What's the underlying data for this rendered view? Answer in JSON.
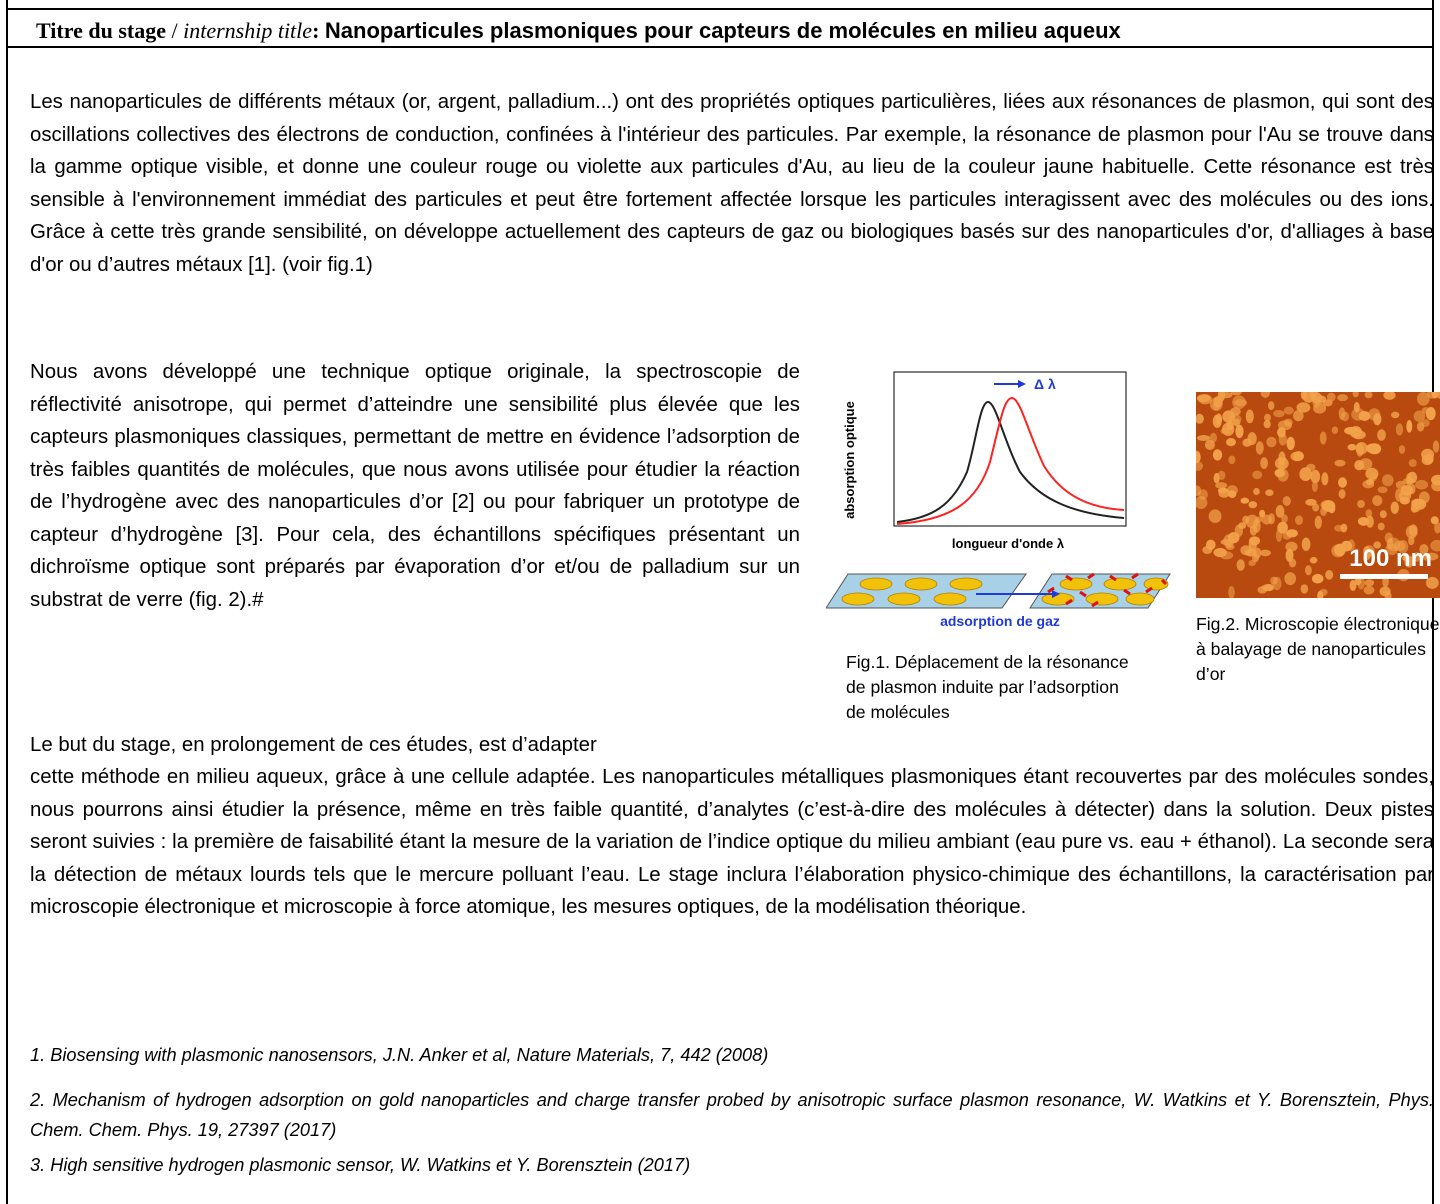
{
  "title": {
    "label_fr": "Titre du stage",
    "separator": " / ",
    "label_en": "internship title",
    "colon": ": ",
    "text": "Nanoparticules plasmoniques pour capteurs de molécules en milieu aqueux"
  },
  "paragraphs": {
    "p1": "Les nanoparticules de différents métaux (or, argent, palladium...) ont des propriétés optiques particulières, liées aux résonances de plasmon, qui sont des oscillations collectives des électrons de conduction, confinées à l'intérieur des particules. Par exemple, la résonance de plasmon pour l'Au se trouve dans la gamme optique visible, et donne une couleur rouge ou violette aux particules d'Au, au lieu de la couleur jaune habituelle. Cette résonance est très sensible à l'environnement immédiat des particules et peut être fortement affectée lorsque les particules interagissent avec des molécules ou des ions. Grâce à cette très grande sensibilité, on développe actuellement des capteurs de gaz ou biologiques basés sur des nanoparticules d'or,  d'alliages à base d'or ou d’autres métaux [1]. (voir fig.1)",
    "p2": "Nous avons développé une technique optique originale, la spectroscopie de réflectivité anisotrope, qui permet d’atteindre une sensibilité plus élevée que les capteurs plasmoniques classiques, permettant de mettre en évidence l’adsorption de très faibles quantités de molécules, que nous avons utilisée pour étudier la réaction de l’hydrogène avec des nanoparticules d’or [2] ou pour fabriquer un prototype de capteur d’hydrogène [3]. Pour cela, des échantillons spécifiques présentant un dichroïsme optique sont préparés par évaporation d’or et/ou de palladium sur un substrat de verre (fig. 2).#",
    "p3_first_line": "Le but du stage, en prolongement de ces études, est d’adapter",
    "p3_rest": "cette méthode en milieu aqueux, grâce à une cellule adaptée. Les nanoparticules métalliques plasmoniques étant recouvertes par des molécules sondes, nous pourrons ainsi étudier la présence, même en très faible quantité, d’analytes (c’est-à-dire des molécules à détecter) dans la solution. Deux pistes seront suivies : la première de faisabilité étant la mesure de la variation de l’indice optique du milieu ambiant (eau pure vs. eau + éthanol). La seconde sera la détection de métaux lourds tels que le mercure polluant l’eau. Le stage inclura l’élaboration physico-chimique des échantillons, la caractérisation par microscopie électronique et microscopie à force atomique, les mesures optiques, de la modélisation théorique."
  },
  "references": [
    "1. Biosensing with plasmonic nanosensors, J.N. Anker et al, Nature Materials, 7, 442 (2008)",
    "2. Mechanism of hydrogen adsorption on gold nanoparticles and charge transfer probed by anisotropic surface plasmon resonance, W. Watkins et Y. Borensztein, Phys. Chem. Chem. Phys. 19, 27397 (2017)",
    "3. High sensitive hydrogen plasmonic sensor, W. Watkins et Y. Borensztein (2017)"
  ],
  "figure1": {
    "ylabel": "absorption optique",
    "xlabel": "longueur d'onde λ",
    "shift_label": "Δ λ",
    "gas_label": "adsorption de gaz",
    "caption": "Fig.1. Déplacement de la résonance de plasmon induite par l’adsorption de molécules",
    "colors": {
      "before": "#222222",
      "after": "#ff2020",
      "arrow": "#1f3ad8"
    }
  },
  "figure2": {
    "scale_label": "100 nm",
    "caption": "Fig.2. Microscopie électronique à balayage de nanoparticules d’or",
    "colors": {
      "background": "#b84a10",
      "particle": "#f2a24a"
    }
  }
}
